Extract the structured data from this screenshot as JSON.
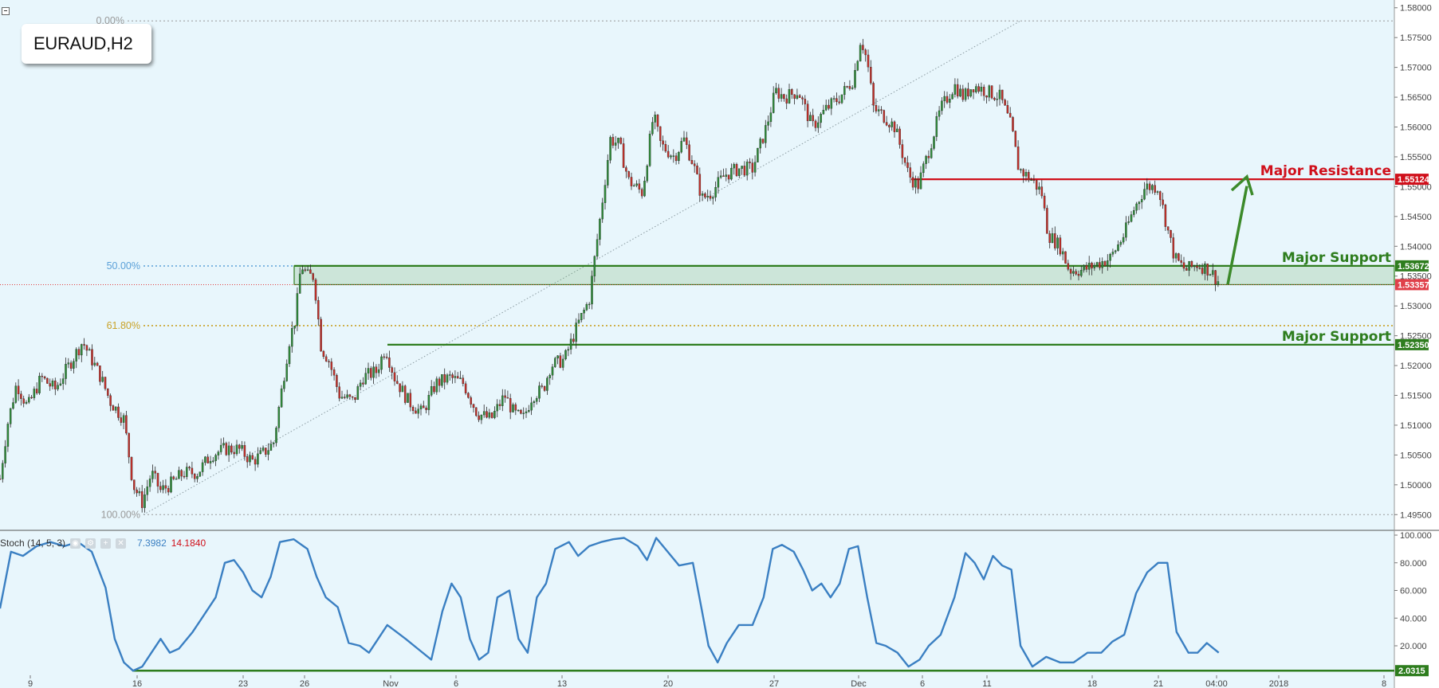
{
  "symbol_label": "EURAUD,H2",
  "indicator": {
    "label": "Stoch (14, 5, 3)",
    "k_value": "7.3982",
    "d_value": "14.1840",
    "k_color": "#3a7fc2",
    "d_color": "#d0101b"
  },
  "chart_data": {
    "type": "candlestick",
    "price_axis": {
      "min": 1.4925,
      "max": 1.5805,
      "ticks": [
        1.58,
        1.575,
        1.57,
        1.565,
        1.56,
        1.555,
        1.55,
        1.545,
        1.54,
        1.535,
        1.53,
        1.525,
        1.52,
        1.515,
        1.51,
        1.505,
        1.5,
        1.495
      ],
      "tick_labels": [
        "1.58000",
        "1.57500",
        "1.57000",
        "1.56500",
        "1.56000",
        "1.55500",
        "1.55000",
        "1.54500",
        "1.54000",
        "1.53500",
        "1.53000",
        "1.52500",
        "1.52000",
        "1.51500",
        "1.51000",
        "1.50500",
        "1.50000",
        "1.49500"
      ]
    },
    "time_axis": {
      "labels": [
        "9",
        "16",
        "23",
        "26",
        "Nov",
        "6",
        "13",
        "20",
        "27",
        "Dec",
        "6",
        "11",
        "18",
        "21",
        "04:00",
        "2018",
        "8"
      ]
    },
    "price_path": [
      [
        0,
        1.501
      ],
      [
        8,
        1.51
      ],
      [
        18,
        1.517
      ],
      [
        30,
        1.513
      ],
      [
        45,
        1.518
      ],
      [
        60,
        1.516
      ],
      [
        75,
        1.52
      ],
      [
        90,
        1.524
      ],
      [
        100,
        1.521
      ],
      [
        110,
        1.518
      ],
      [
        120,
        1.514
      ],
      [
        135,
        1.511
      ],
      [
        145,
        1.5
      ],
      [
        155,
        1.497
      ],
      [
        165,
        1.502
      ],
      [
        175,
        1.499
      ],
      [
        185,
        1.5
      ],
      [
        200,
        1.502
      ],
      [
        215,
        1.502
      ],
      [
        230,
        1.505
      ],
      [
        245,
        1.506
      ],
      [
        260,
        1.506
      ],
      [
        275,
        1.504
      ],
      [
        285,
        1.505
      ],
      [
        298,
        1.507
      ],
      [
        305,
        1.514
      ],
      [
        315,
        1.524
      ],
      [
        322,
        1.528
      ],
      [
        328,
        1.537
      ],
      [
        335,
        1.535
      ],
      [
        342,
        1.535
      ],
      [
        350,
        1.523
      ],
      [
        358,
        1.521
      ],
      [
        370,
        1.515
      ],
      [
        385,
        1.514
      ],
      [
        395,
        1.518
      ],
      [
        410,
        1.519
      ],
      [
        420,
        1.523
      ],
      [
        430,
        1.518
      ],
      [
        445,
        1.514
      ],
      [
        460,
        1.512
      ],
      [
        475,
        1.517
      ],
      [
        490,
        1.518
      ],
      [
        505,
        1.517
      ],
      [
        520,
        1.512
      ],
      [
        535,
        1.511
      ],
      [
        550,
        1.515
      ],
      [
        560,
        1.512
      ],
      [
        570,
        1.511
      ],
      [
        580,
        1.515
      ],
      [
        592,
        1.516
      ],
      [
        600,
        1.52
      ],
      [
        615,
        1.521
      ],
      [
        630,
        1.527
      ],
      [
        642,
        1.531
      ],
      [
        648,
        1.538
      ],
      [
        655,
        1.546
      ],
      [
        665,
        1.558
      ],
      [
        675,
        1.557
      ],
      [
        685,
        1.551
      ],
      [
        700,
        1.549
      ],
      [
        712,
        1.562
      ],
      [
        720,
        1.557
      ],
      [
        735,
        1.555
      ],
      [
        745,
        1.558
      ],
      [
        755,
        1.554
      ],
      [
        765,
        1.548
      ],
      [
        775,
        1.549
      ],
      [
        790,
        1.552
      ],
      [
        805,
        1.553
      ],
      [
        820,
        1.553
      ],
      [
        835,
        1.56
      ],
      [
        845,
        1.566
      ],
      [
        855,
        1.565
      ],
      [
        870,
        1.566
      ],
      [
        885,
        1.56
      ],
      [
        900,
        1.563
      ],
      [
        915,
        1.565
      ],
      [
        930,
        1.568
      ],
      [
        938,
        1.575
      ],
      [
        945,
        1.571
      ],
      [
        952,
        1.563
      ],
      [
        962,
        1.562
      ],
      [
        975,
        1.56
      ],
      [
        990,
        1.552
      ],
      [
        1000,
        1.55
      ],
      [
        1012,
        1.556
      ],
      [
        1025,
        1.563
      ],
      [
        1040,
        1.567
      ],
      [
        1050,
        1.565
      ],
      [
        1060,
        1.567
      ],
      [
        1075,
        1.566
      ],
      [
        1090,
        1.565
      ],
      [
        1102,
        1.56
      ],
      [
        1110,
        1.553
      ],
      [
        1125,
        1.551
      ],
      [
        1135,
        1.549
      ],
      [
        1142,
        1.542
      ],
      [
        1155,
        1.54
      ],
      [
        1165,
        1.536
      ],
      [
        1180,
        1.536
      ],
      [
        1195,
        1.537
      ],
      [
        1210,
        1.538
      ],
      [
        1225,
        1.542
      ],
      [
        1235,
        1.546
      ],
      [
        1248,
        1.55
      ],
      [
        1262,
        1.55
      ],
      [
        1272,
        1.543
      ],
      [
        1280,
        1.538
      ],
      [
        1292,
        1.536
      ],
      [
        1305,
        1.537
      ],
      [
        1318,
        1.536
      ],
      [
        1328,
        1.534
      ]
    ],
    "stochastic": {
      "min": 0,
      "max": 100,
      "ticks": [
        100,
        80,
        60,
        40,
        20
      ],
      "tick_labels": [
        "100.000",
        "80.000",
        "60.000",
        "40.000",
        "20.000"
      ],
      "k_path": [
        [
          0,
          47
        ],
        [
          12,
          88
        ],
        [
          25,
          85
        ],
        [
          40,
          92
        ],
        [
          55,
          95
        ],
        [
          70,
          92
        ],
        [
          85,
          95
        ],
        [
          100,
          88
        ],
        [
          115,
          62
        ],
        [
          125,
          25
        ],
        [
          135,
          8
        ],
        [
          145,
          2
        ],
        [
          155,
          5
        ],
        [
          165,
          15
        ],
        [
          175,
          25
        ],
        [
          185,
          15
        ],
        [
          195,
          18
        ],
        [
          210,
          30
        ],
        [
          225,
          45
        ],
        [
          235,
          55
        ],
        [
          245,
          80
        ],
        [
          255,
          82
        ],
        [
          265,
          73
        ],
        [
          275,
          60
        ],
        [
          285,
          55
        ],
        [
          295,
          70
        ],
        [
          305,
          95
        ],
        [
          320,
          97
        ],
        [
          335,
          90
        ],
        [
          345,
          70
        ],
        [
          355,
          55
        ],
        [
          368,
          48
        ],
        [
          380,
          22
        ],
        [
          392,
          20
        ],
        [
          402,
          15
        ],
        [
          412,
          25
        ],
        [
          422,
          35
        ],
        [
          432,
          30
        ],
        [
          442,
          25
        ],
        [
          455,
          18
        ],
        [
          470,
          10
        ],
        [
          482,
          45
        ],
        [
          492,
          65
        ],
        [
          502,
          55
        ],
        [
          512,
          25
        ],
        [
          522,
          10
        ],
        [
          532,
          15
        ],
        [
          542,
          55
        ],
        [
          555,
          60
        ],
        [
          565,
          25
        ],
        [
          575,
          15
        ],
        [
          585,
          55
        ],
        [
          595,
          65
        ],
        [
          605,
          90
        ],
        [
          620,
          95
        ],
        [
          630,
          85
        ],
        [
          642,
          92
        ],
        [
          655,
          95
        ],
        [
          668,
          97
        ],
        [
          680,
          98
        ],
        [
          695,
          92
        ],
        [
          705,
          82
        ],
        [
          715,
          98
        ],
        [
          725,
          90
        ],
        [
          740,
          78
        ],
        [
          755,
          80
        ],
        [
          765,
          45
        ],
        [
          772,
          20
        ],
        [
          782,
          8
        ],
        [
          792,
          22
        ],
        [
          805,
          35
        ],
        [
          820,
          35
        ],
        [
          832,
          55
        ],
        [
          842,
          90
        ],
        [
          852,
          93
        ],
        [
          865,
          88
        ],
        [
          875,
          75
        ],
        [
          885,
          60
        ],
        [
          895,
          65
        ],
        [
          905,
          55
        ],
        [
          915,
          65
        ],
        [
          925,
          90
        ],
        [
          935,
          92
        ],
        [
          945,
          55
        ],
        [
          955,
          22
        ],
        [
          965,
          20
        ],
        [
          978,
          15
        ],
        [
          990,
          5
        ],
        [
          1002,
          10
        ],
        [
          1012,
          20
        ],
        [
          1025,
          28
        ],
        [
          1040,
          55
        ],
        [
          1052,
          87
        ],
        [
          1062,
          80
        ],
        [
          1072,
          68
        ],
        [
          1082,
          85
        ],
        [
          1092,
          78
        ],
        [
          1102,
          75
        ],
        [
          1112,
          20
        ],
        [
          1125,
          5
        ],
        [
          1140,
          12
        ],
        [
          1155,
          8
        ],
        [
          1170,
          8
        ],
        [
          1185,
          15
        ],
        [
          1200,
          15
        ],
        [
          1212,
          23
        ],
        [
          1225,
          28
        ],
        [
          1238,
          58
        ],
        [
          1250,
          73
        ],
        [
          1262,
          80
        ],
        [
          1272,
          80
        ],
        [
          1282,
          30
        ],
        [
          1295,
          15
        ],
        [
          1305,
          15
        ],
        [
          1315,
          22
        ],
        [
          1328,
          15
        ]
      ]
    },
    "price_labels": [
      {
        "value": 1.55124,
        "label": "1.55124",
        "color": "#d0101b"
      },
      {
        "value": 1.53672,
        "label": "1.53672",
        "color": "#2e7d1e"
      },
      {
        "value": 1.53357,
        "label": "1.53357",
        "color": "#e0404a"
      },
      {
        "value": 1.5235,
        "label": "1.52350",
        "color": "#2e7d1e"
      }
    ],
    "stoch_labels": [
      {
        "value": 2.0315,
        "label": "2.0315",
        "color": "#2e7d1e"
      }
    ],
    "annotations": [
      {
        "text": "Major Resistance",
        "value": 1.55124,
        "color": "#d0101b"
      },
      {
        "text": "Major Support",
        "value": 1.53672,
        "color": "#2e7d1e"
      },
      {
        "text": "Major Support",
        "value": 1.5235,
        "color": "#2e7d1e"
      }
    ],
    "fibonacci": [
      {
        "label": "0.00%",
        "value": 1.5778,
        "color": "#999999"
      },
      {
        "label": "50.00%",
        "value": 1.5367,
        "color": "#5aa0d8"
      },
      {
        "label": "61.80%",
        "value": 1.5267,
        "color": "#c9a227"
      },
      {
        "label": "100.00%",
        "value": 1.495,
        "color": "#999999"
      }
    ],
    "support_zone": {
      "top": 1.53672,
      "bottom": 1.53357
    }
  }
}
